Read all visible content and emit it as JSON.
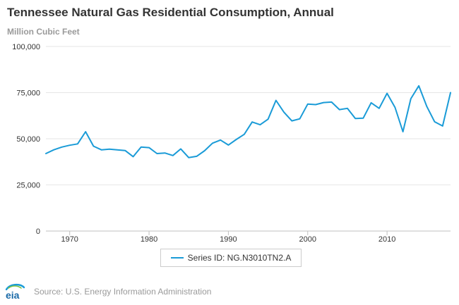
{
  "chart_data": {
    "type": "line",
    "title": "Tennessee Natural Gas Residential Consumption, Annual",
    "ylabel": "Million Cubic Feet",
    "xlabel": "",
    "xlim": [
      1967,
      2018
    ],
    "ylim": [
      0,
      100000
    ],
    "x_ticks": [
      1970,
      1980,
      1990,
      2000,
      2010
    ],
    "x_tick_labels": [
      "1970",
      "1980",
      "1990",
      "2000",
      "2010"
    ],
    "y_ticks": [
      0,
      25000,
      50000,
      75000,
      100000
    ],
    "y_tick_labels": [
      "0",
      "25,000",
      "50,000",
      "75,000",
      "100,000"
    ],
    "grid": "horizontal",
    "legend_position": "bottom",
    "series": [
      {
        "name": "Series ID: NG.N3010TN2.A",
        "color": "#1a9bd7",
        "x": [
          1967,
          1968,
          1969,
          1970,
          1971,
          1972,
          1973,
          1974,
          1975,
          1976,
          1977,
          1978,
          1979,
          1980,
          1981,
          1982,
          1983,
          1984,
          1985,
          1986,
          1987,
          1988,
          1989,
          1990,
          1991,
          1992,
          1993,
          1994,
          1995,
          1996,
          1997,
          1998,
          1999,
          2000,
          2001,
          2002,
          2003,
          2004,
          2005,
          2006,
          2007,
          2008,
          2009,
          2010,
          2011,
          2012,
          2013,
          2014,
          2015,
          2016,
          2017,
          2018
        ],
        "values": [
          42000,
          44000,
          45500,
          46500,
          47200,
          53800,
          46000,
          44000,
          44400,
          44000,
          43600,
          40300,
          45500,
          45200,
          42000,
          42300,
          40900,
          44500,
          39800,
          40500,
          43500,
          47600,
          49300,
          46600,
          49600,
          52400,
          59100,
          57600,
          60600,
          70800,
          64400,
          59700,
          60800,
          68800,
          68500,
          69600,
          69900,
          65800,
          66500,
          61000,
          61200,
          69500,
          66500,
          74600,
          67000,
          53800,
          71700,
          78700,
          67600,
          59200,
          56900,
          75000
        ]
      }
    ]
  },
  "source": {
    "text": "Source: U.S. Energy Information Administration",
    "logo_text": "eia"
  }
}
